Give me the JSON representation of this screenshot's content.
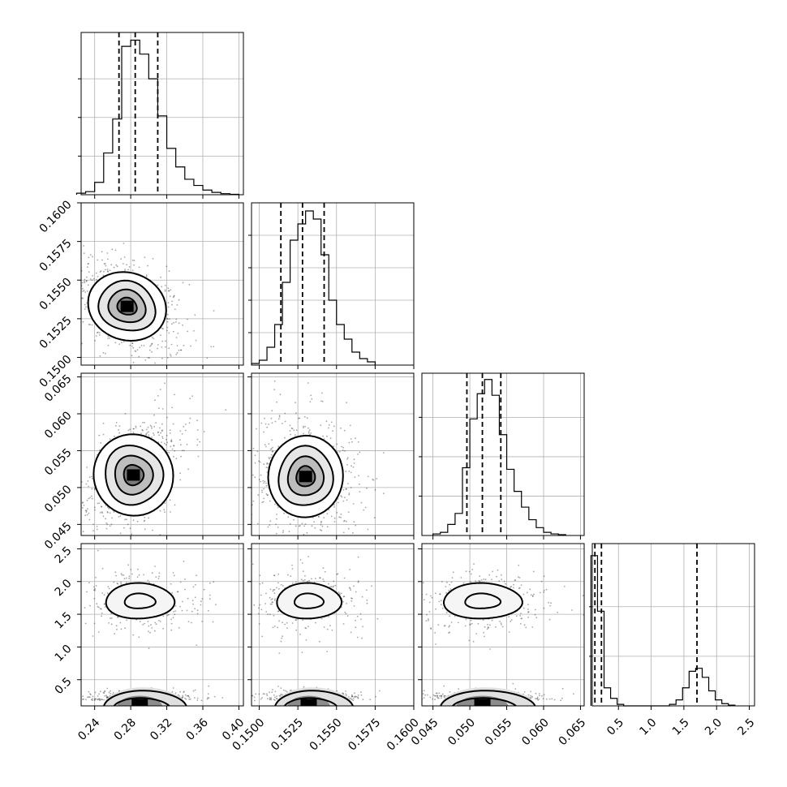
{
  "chart_data": {
    "type": "corner",
    "parameters": [
      {
        "range": [
          0.225,
          0.405
        ],
        "ticks": [
          "0.24",
          "0.28",
          "0.32",
          "0.36",
          "0.40"
        ],
        "quantiles": [
          0.267,
          0.285,
          0.31
        ],
        "hist": {
          "edges": [
            0.22,
            0.23,
            0.24,
            0.25,
            0.26,
            0.27,
            0.28,
            0.29,
            0.3,
            0.31,
            0.32,
            0.33,
            0.34,
            0.35,
            0.36,
            0.37,
            0.38,
            0.39,
            0.4
          ],
          "counts": [
            1,
            2,
            8,
            27,
            49,
            96,
            100,
            91,
            75,
            51,
            30,
            18,
            10,
            6,
            3,
            1.5,
            0.7,
            0.3
          ],
          "ymax": 105,
          "yticks": [
            25,
            50,
            75
          ]
        }
      },
      {
        "range": [
          0.1495,
          0.16
        ],
        "ticks": [
          "0.1500",
          "0.1525",
          "0.1550",
          "0.1575",
          "0.1600"
        ],
        "quantiles": [
          0.1514,
          0.1528,
          0.1542
        ],
        "hist": {
          "edges": [
            0.1495,
            0.15,
            0.1505,
            0.151,
            0.1515,
            0.152,
            0.1525,
            0.153,
            0.1535,
            0.154,
            0.1545,
            0.155,
            0.1555,
            0.156,
            0.1565,
            0.157,
            0.1575
          ],
          "counts": [
            1,
            3,
            11,
            25,
            51,
            77,
            87,
            95,
            90,
            68,
            40,
            25,
            16,
            8,
            4,
            2
          ],
          "ymax": 100,
          "yticks": [
            20,
            40,
            60,
            80
          ]
        }
      },
      {
        "range": [
          0.0435,
          0.0655
        ],
        "ticks": [
          "0.045",
          "0.050",
          "0.055",
          "0.060",
          "0.065"
        ],
        "quantiles": [
          0.0496,
          0.0517,
          0.0542
        ],
        "hist": {
          "edges": [
            0.045,
            0.046,
            0.047,
            0.048,
            0.049,
            0.05,
            0.051,
            0.052,
            0.053,
            0.054,
            0.055,
            0.056,
            0.057,
            0.058,
            0.059,
            0.06,
            0.061,
            0.062,
            0.063
          ],
          "counts": [
            1,
            2,
            7,
            14,
            43,
            74,
            90,
            99,
            89,
            64,
            42,
            28,
            18,
            10,
            5,
            2,
            1,
            0.5
          ],
          "ymax": 103,
          "yticks": [
            25,
            50,
            75
          ]
        }
      },
      {
        "range": [
          0.1,
          2.58
        ],
        "ticks": [
          "0.5",
          "1.0",
          "1.5",
          "2.0",
          "2.5"
        ],
        "yticks_labels": [
          "0.5",
          "1.0",
          "1.5",
          "2.0",
          "2.5"
        ],
        "quantiles": [
          0.14,
          0.24,
          1.7
        ],
        "hist": {
          "edges": [
            0.08,
            0.18,
            0.28,
            0.38,
            0.48,
            0.58,
            0.68,
            0.78,
            0.88,
            0.98,
            1.08,
            1.18,
            1.28,
            1.38,
            1.48,
            1.58,
            1.68,
            1.78,
            1.88,
            1.98,
            2.08,
            2.18,
            2.28
          ],
          "counts": [
            100,
            63,
            12,
            5,
            1,
            0,
            0,
            0,
            0,
            0,
            0,
            0,
            1,
            4,
            12,
            23,
            25,
            19,
            10,
            4,
            1.5,
            0.5
          ],
          "ymax": 108,
          "yticks": [
            33,
            66
          ]
        }
      }
    ],
    "pairs": [
      {
        "row": 1,
        "col": 0,
        "kind": "tilted",
        "mx": 0.276,
        "my": 0.1533,
        "sx": 0.02,
        "sy": 0.0011,
        "rho": -0.45,
        "scatter_n": 650
      },
      {
        "row": 2,
        "col": 0,
        "kind": "tilted",
        "mx": 0.283,
        "my": 0.0517,
        "sx": 0.02,
        "sy": 0.0028,
        "rho": 0.5,
        "scatter_n": 650
      },
      {
        "row": 2,
        "col": 1,
        "kind": "tilted",
        "mx": 0.153,
        "my": 0.0515,
        "sx": 0.0011,
        "sy": 0.0028,
        "rho": -0.15,
        "scatter_n": 650
      },
      {
        "row": 3,
        "col": 0,
        "kind": "bimodal",
        "mx": 0.29,
        "my": 0.18,
        "sx": 0.02,
        "sy": 0.06,
        "my2": 1.7,
        "sy2": 0.17,
        "scatter_n": 650
      },
      {
        "row": 3,
        "col": 1,
        "kind": "bimodal",
        "mx": 0.1532,
        "my": 0.18,
        "sx": 0.0011,
        "sy": 0.06,
        "my2": 1.7,
        "sy2": 0.17,
        "scatter_n": 650
      },
      {
        "row": 3,
        "col": 2,
        "kind": "bimodal",
        "mx": 0.0517,
        "my": 0.18,
        "sx": 0.0028,
        "sy": 0.06,
        "my2": 1.7,
        "sy2": 0.17,
        "scatter_n": 650
      }
    ],
    "grid": true
  }
}
